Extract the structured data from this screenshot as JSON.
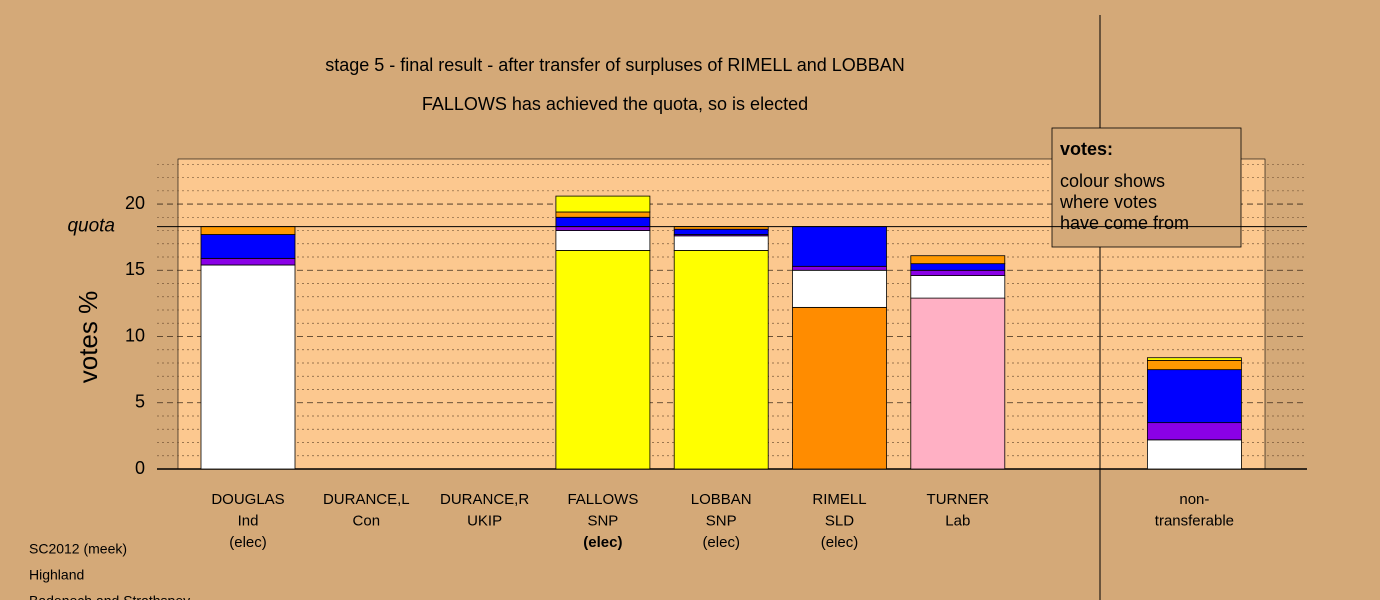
{
  "chart_data": {
    "type": "stacked-bar",
    "title": "stage 5 - final result - after transfer of surpluses of RIMELL and LOBBAN",
    "subtitle": "FALLOWS has achieved the quota, so is elected",
    "y_label": "votes %",
    "categories": [
      [
        "DOUGLAS",
        "Ind",
        "(elec)"
      ],
      [
        "DURANCE,L",
        "Con"
      ],
      [
        "DURANCE,R",
        "UKIP"
      ],
      [
        "FALLOWS",
        "SNP",
        "(elec)"
      ],
      [
        "LOBBAN",
        "SNP",
        "(elec)"
      ],
      [
        "RIMELL",
        "SLD",
        "(elec)"
      ],
      [
        "TURNER",
        "Lab"
      ],
      null,
      [
        "non-",
        "transferable"
      ]
    ],
    "highlight_category": 3,
    "series": [
      {
        "colors": [
          "#ffffff",
          null,
          null,
          "#ffff00",
          "#ffff00",
          "#ff8c00",
          "#ffb0c4",
          null,
          "#ffffff"
        ],
        "values": [
          15.4,
          null,
          null,
          16.5,
          16.5,
          12.2,
          12.9,
          null,
          2.2
        ]
      },
      {
        "color": "#ffffff",
        "values": [
          null,
          null,
          null,
          1.5,
          1.1,
          2.8,
          1.7,
          null,
          null
        ]
      },
      {
        "color": "#8a00e6",
        "values": [
          0.5,
          null,
          null,
          0.3,
          0.1,
          0.3,
          0.4,
          null,
          1.3
        ]
      },
      {
        "color": "#0000ff",
        "values": [
          1.8,
          null,
          null,
          0.7,
          0.4,
          3.0,
          0.5,
          null,
          4.0
        ]
      },
      {
        "color": "#ff9900",
        "values": [
          0.6,
          null,
          null,
          0.4,
          0.2,
          null,
          0.6,
          null,
          0.7
        ]
      },
      {
        "color": "#ffff00",
        "values": [
          null,
          null,
          null,
          1.2,
          null,
          null,
          null,
          null,
          0.2
        ]
      }
    ],
    "quota": 18.3,
    "quota_label": "quota",
    "ylim": [
      0,
      23.4
    ],
    "yticks": [
      0,
      5,
      10,
      15,
      20
    ],
    "minor_yticks": [
      1,
      2,
      3,
      4,
      6,
      7,
      8,
      9,
      11,
      12,
      13,
      14,
      16,
      17,
      18,
      19,
      21,
      22,
      23
    ],
    "grid": true,
    "legend": {
      "title": "votes:",
      "lines": [
        "colour shows",
        "where votes",
        "have come from"
      ]
    },
    "footer": [
      "SC2012 (meek)",
      "Highland",
      "Badenoch and Strathspey"
    ]
  }
}
